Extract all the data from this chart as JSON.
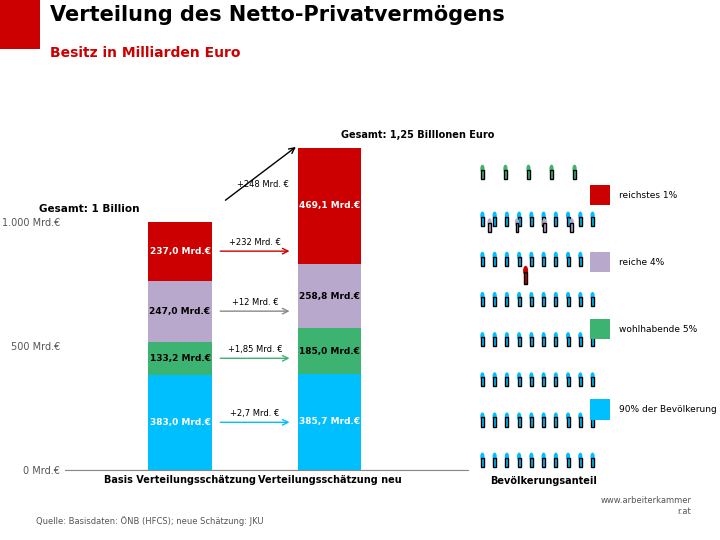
{
  "title": "Verteilung des Netto-Privatvermögens",
  "subtitle": "Besitz in Milliarden Euro",
  "source": "Quelle: Basisdaten: ÖNB (HFCS); neue Schätzung: JKU",
  "website": "www.arbeiterkammer\nr.at",
  "bar1_label": "Basis Verteilungsschätzung",
  "bar2_label": "Verteilungsschätzung neu",
  "bar3_label": "Bevölkerungsanteil",
  "bar1_values": [
    383.0,
    133.2,
    247.0,
    237.0
  ],
  "bar2_values": [
    385.7,
    185.0,
    258.8,
    469.1
  ],
  "bar_colors": [
    "#00BFFF",
    "#3CB371",
    "#B8A8CC",
    "#CC0000"
  ],
  "legend_labels": [
    "reichstes 1%",
    "reiche 4%",
    "wohlhabende 5%",
    "90% der Bevölkerung"
  ],
  "legend_colors": [
    "#CC0000",
    "#B8A8CC",
    "#3CB371",
    "#00BFFF"
  ],
  "ylim": [
    0,
    1350
  ],
  "yticks": [
    0,
    500,
    1000
  ],
  "ytick_labels": [
    "0 Mrd.€",
    "500 Mrd.€",
    "1.000 Mrd.€"
  ],
  "bar1_total_label": "Gesamt: 1 Billion",
  "bar2_total_label": "Gesamt: 1,25 Billlonen Euro",
  "bar1_segment_labels": [
    "383,0 Mrd.€",
    "133,2 Mrd.€",
    "247,0 Mrd.€",
    "237,0 Mrd.€"
  ],
  "bar2_segment_labels": [
    "385,7 Mrd.€",
    "185,0 Mrd.€",
    "258,8 Mrd.€",
    "469,1 Mrd.€"
  ],
  "background_color": "#FFFFFF",
  "title_color": "#000000",
  "subtitle_color": "#CC0000",
  "red_square_color": "#CC0000"
}
